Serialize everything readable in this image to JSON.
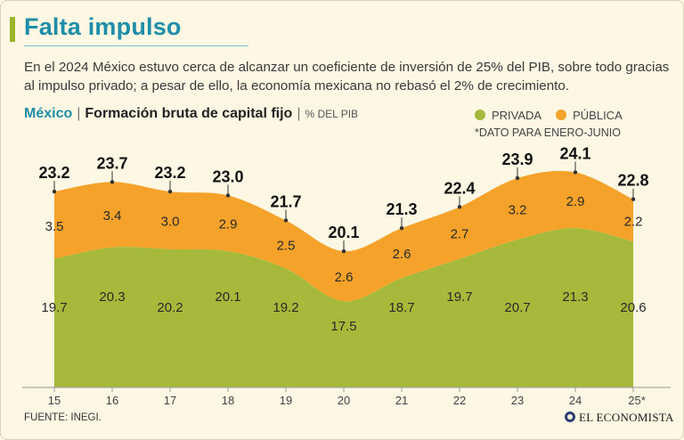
{
  "title": "Falta impulso",
  "subtitle": "En el 2024 México estuvo cerca de alcanzar un coeficiente de inversión de 25% del PIB, sobre todo gracias al impulso privado; a pesar de ello, la economía mexicana no rebasó el 2% de crecimiento.",
  "header": {
    "country": "México",
    "separator": "|",
    "chart_title": "Formación bruta de capital fijo",
    "separator2": "|",
    "unit": "% DEL PIB"
  },
  "legend": {
    "private_label": "PRIVADA",
    "public_label": "PÚBLICA",
    "note": "*DATO PARA ENERO-JUNIO"
  },
  "footer": {
    "source": "FUENTE: INEGI.",
    "brand": "EL ECONOMISTA"
  },
  "colors": {
    "private": "#a6b93a",
    "public": "#f5a22a",
    "title": "#1e8ea8",
    "background": "#fdf7e3"
  },
  "chart_data": {
    "type": "area",
    "stacked": true,
    "title": "Formación bruta de capital fijo",
    "ylabel": "% DEL PIB",
    "categories": [
      "15",
      "16",
      "17",
      "18",
      "19",
      "20",
      "21",
      "22",
      "23",
      "24",
      "25*"
    ],
    "series": [
      {
        "name": "PRIVADA",
        "values": [
          19.7,
          20.3,
          20.2,
          20.1,
          19.2,
          17.5,
          18.7,
          19.7,
          20.7,
          21.3,
          20.6
        ]
      },
      {
        "name": "PÚBLICA",
        "values": [
          3.5,
          3.4,
          3.0,
          2.9,
          2.5,
          2.6,
          2.6,
          2.7,
          3.2,
          2.9,
          2.2
        ]
      }
    ],
    "totals": [
      23.2,
      23.7,
      23.2,
      23.0,
      21.7,
      20.1,
      21.3,
      22.4,
      23.9,
      24.1,
      22.8
    ],
    "ylim": [
      0,
      25
    ]
  }
}
